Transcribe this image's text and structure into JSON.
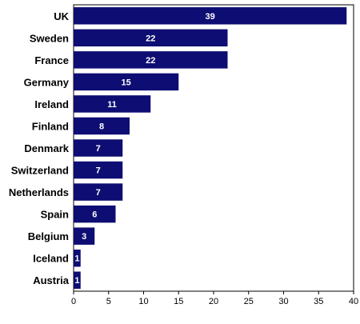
{
  "chart_data": {
    "type": "bar",
    "orientation": "horizontal",
    "categories": [
      "UK",
      "Sweden",
      "France",
      "Germany",
      "Ireland",
      "Finland",
      "Denmark",
      "Switzerland",
      "Netherlands",
      "Spain",
      "Belgium",
      "Iceland",
      "Austria"
    ],
    "values": [
      39,
      22,
      22,
      15,
      11,
      8,
      7,
      7,
      7,
      6,
      3,
      1,
      1
    ],
    "data_labels": [
      "39",
      "22",
      "22",
      "15",
      "11",
      "8",
      "7",
      "7",
      "7",
      "6",
      "3",
      "1",
      "1"
    ],
    "x_ticks": [
      "0",
      "5",
      "10",
      "15",
      "20",
      "25",
      "30",
      "35",
      "40"
    ],
    "xlim": [
      0,
      40
    ],
    "bar_color": "#0d0d73",
    "grid": false,
    "legend": "none"
  }
}
